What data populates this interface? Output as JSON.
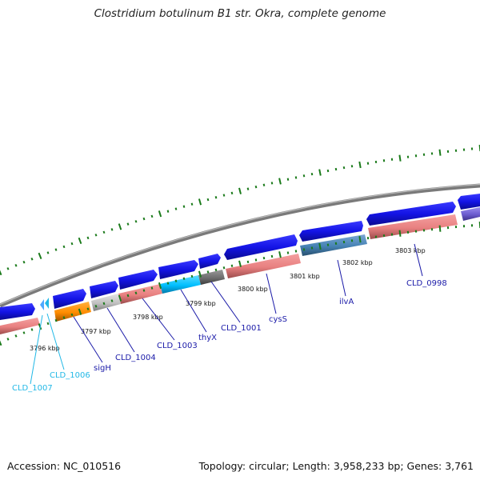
{
  "title": "Clostridium botulinum B1 str. Okra, complete genome",
  "footer": {
    "accession_label": "Accession:",
    "accession": "NC_010516",
    "topology_text": "Topology: circular; Length: 3,958,233 bp; Genes: 3,761"
  },
  "map": {
    "kbp_ticks": [
      {
        "text": "3796 kbp"
      },
      {
        "text": "3797 kbp"
      },
      {
        "text": "3798 kbp"
      },
      {
        "text": "3799 kbp"
      },
      {
        "text": "3800 kbp"
      },
      {
        "text": "3801 kbp"
      },
      {
        "text": "3802 kbp"
      },
      {
        "text": "3803 kbp"
      }
    ],
    "gene_labels": [
      {
        "text": "CLD_1007",
        "color": "#22b8e6"
      },
      {
        "text": "CLD_1006",
        "color": "#22b8e6"
      },
      {
        "text": "sigH",
        "color": "#1a1aa8"
      },
      {
        "text": "CLD_1004",
        "color": "#1a1aa8"
      },
      {
        "text": "CLD_1003",
        "color": "#1a1aa8"
      },
      {
        "text": "thyX",
        "color": "#1a1aa8"
      },
      {
        "text": "CLD_1001",
        "color": "#1a1aa8"
      },
      {
        "text": "cysS",
        "color": "#1a1aa8"
      },
      {
        "text": "ilvA",
        "color": "#1a1aa8"
      },
      {
        "text": "CLD_0998",
        "color": "#1a1aa8"
      }
    ],
    "colors": {
      "backbone": "#8a8a8a",
      "cds_forward": "#1414e6",
      "feature_pink": "#e88080",
      "tick_green": "#1a7a1a",
      "orange": "#ff8c00",
      "cyan": "#00bfff",
      "steelblue": "#4682b4",
      "gray": "#6e6e6e",
      "silver": "#c0c0c0",
      "purple": "#6a5acd"
    }
  }
}
